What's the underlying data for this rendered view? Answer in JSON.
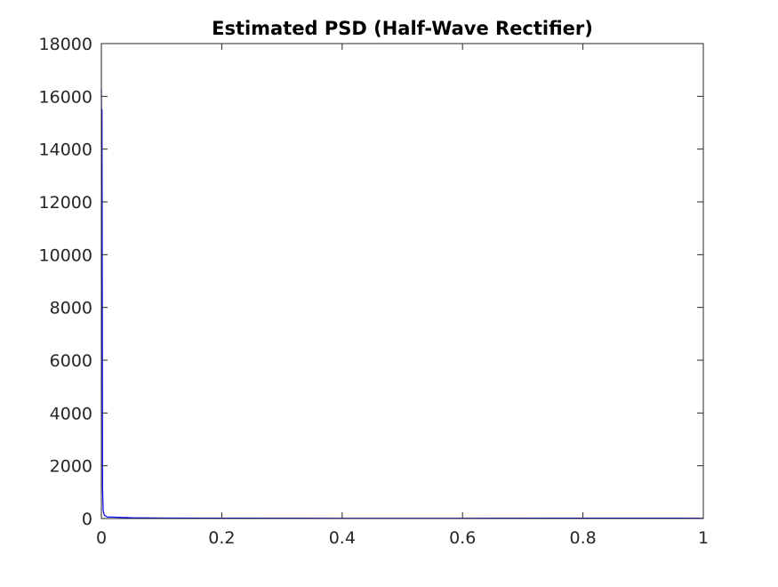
{
  "chart_data": {
    "type": "line",
    "title": "Estimated PSD (Half-Wave Rectifier)",
    "xlabel": "",
    "ylabel": "",
    "xlim": [
      0,
      1
    ],
    "ylim": [
      0,
      18000
    ],
    "x_ticks": [
      0,
      0.2,
      0.4,
      0.6,
      0.8,
      1
    ],
    "x_tick_labels": [
      "0",
      "0.2",
      "0.4",
      "0.6",
      "0.8",
      "1"
    ],
    "y_ticks": [
      0,
      2000,
      4000,
      6000,
      8000,
      10000,
      12000,
      14000,
      16000,
      18000
    ],
    "y_tick_labels": [
      "0",
      "2000",
      "4000",
      "6000",
      "8000",
      "10000",
      "12000",
      "14000",
      "16000",
      "18000"
    ],
    "grid": false,
    "box": true,
    "series": [
      {
        "color": "#0000ff",
        "x": [
          0,
          0.0005,
          0.001,
          0.0015,
          0.002,
          0.003,
          0.005,
          0.01,
          0.05,
          0.1,
          0.2,
          0.4,
          0.6,
          0.8,
          0.9,
          1.0
        ],
        "y": [
          16300,
          14200,
          15500,
          9000,
          1200,
          300,
          120,
          60,
          30,
          18,
          12,
          10,
          10,
          12,
          15,
          10
        ]
      }
    ]
  }
}
